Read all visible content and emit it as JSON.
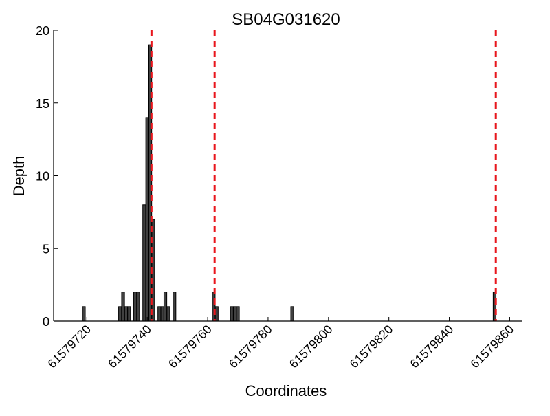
{
  "chart_data": {
    "type": "bar",
    "title": "SB04G031620",
    "xlabel": "Coordinates",
    "ylabel": "Depth",
    "xlim": [
      61579709,
      61579864
    ],
    "ylim": [
      0,
      20
    ],
    "yticks": [
      0,
      5,
      10,
      15,
      20
    ],
    "xticks": [
      61579720,
      61579740,
      61579760,
      61579780,
      61579800,
      61579820,
      61579840,
      61579860
    ],
    "grid": false,
    "bars": [
      {
        "x": 61579719,
        "value": 1
      },
      {
        "x": 61579731,
        "value": 1
      },
      {
        "x": 61579732,
        "value": 2
      },
      {
        "x": 61579733,
        "value": 1
      },
      {
        "x": 61579734,
        "value": 1
      },
      {
        "x": 61579736,
        "value": 2
      },
      {
        "x": 61579737,
        "value": 2
      },
      {
        "x": 61579739,
        "value": 8
      },
      {
        "x": 61579740,
        "value": 14
      },
      {
        "x": 61579741,
        "value": 19
      },
      {
        "x": 61579742,
        "value": 7
      },
      {
        "x": 61579744,
        "value": 1
      },
      {
        "x": 61579745,
        "value": 1
      },
      {
        "x": 61579746,
        "value": 2
      },
      {
        "x": 61579747,
        "value": 1
      },
      {
        "x": 61579749,
        "value": 2
      },
      {
        "x": 61579762,
        "value": 2
      },
      {
        "x": 61579763,
        "value": 1
      },
      {
        "x": 61579768,
        "value": 1
      },
      {
        "x": 61579769,
        "value": 1
      },
      {
        "x": 61579770,
        "value": 1
      },
      {
        "x": 61579788,
        "value": 1
      },
      {
        "x": 61579855,
        "value": 2
      }
    ],
    "reference_lines": [
      61579741.4,
      61579762.3,
      61579855.4
    ],
    "colors": {
      "bar_fill": "#404040",
      "bar_edge": "#000000",
      "reference_line": "#e8161c",
      "axis": "#000000"
    }
  }
}
